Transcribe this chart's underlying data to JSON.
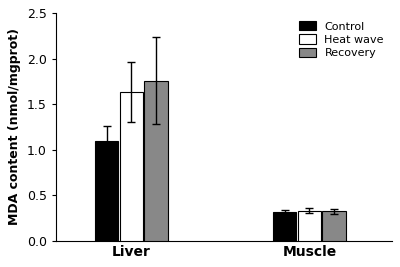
{
  "groups": [
    "Liver",
    "Muscle"
  ],
  "conditions": [
    "Control",
    "Heat wave",
    "Recovery"
  ],
  "bar_colors": [
    "#000000",
    "#ffffff",
    "#888888"
  ],
  "bar_edgecolors": [
    "#000000",
    "#000000",
    "#000000"
  ],
  "values": [
    [
      1.09,
      1.63,
      1.76
    ],
    [
      0.31,
      0.33,
      0.32
    ]
  ],
  "errors": [
    [
      0.17,
      0.33,
      0.48
    ],
    [
      0.03,
      0.03,
      0.03
    ]
  ],
  "ylabel": "MDA content (nmol/mgprot)",
  "ylim": [
    0,
    2.5
  ],
  "yticks": [
    0.0,
    0.5,
    1.0,
    1.5,
    2.0,
    2.5
  ],
  "bar_width": 0.18,
  "group_centers": [
    1.0,
    2.3
  ],
  "xlim": [
    0.45,
    2.9
  ],
  "background_color": "#ffffff",
  "legend_labels": [
    "Control",
    "Heat wave",
    "Recovery"
  ],
  "error_capsize": 3,
  "error_linewidth": 1.0
}
